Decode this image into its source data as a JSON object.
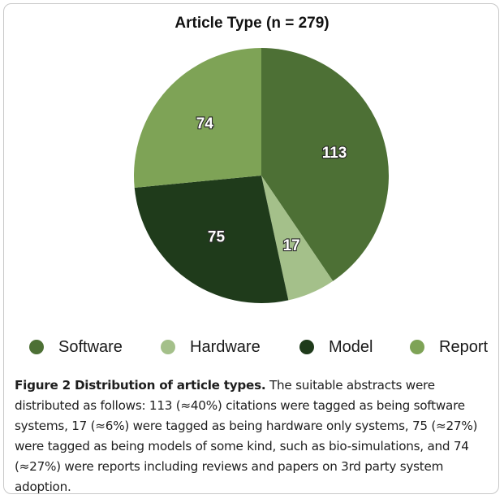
{
  "chart_data": {
    "type": "pie",
    "title": "Article Type (n = 279)",
    "categories": [
      "Software",
      "Hardware",
      "Model",
      "Report"
    ],
    "values": [
      113,
      17,
      75,
      74
    ],
    "colors": [
      "#4d7035",
      "#a4c08a",
      "#1f3b1b",
      "#7ea356"
    ],
    "legend_position": "bottom"
  },
  "caption": {
    "label": "Figure 2 Distribution of article types.",
    "text": " The suitable abstracts were distributed as follows: 113 (≈40%) citations were tagged as being software systems, 17 (≈6%) were tagged as being hardware only systems, 75 (≈27%) were tagged as being models of some kind, such as bio-simulations, and 74 (≈27%) were reports including reviews and papers on 3rd party system adoption."
  }
}
